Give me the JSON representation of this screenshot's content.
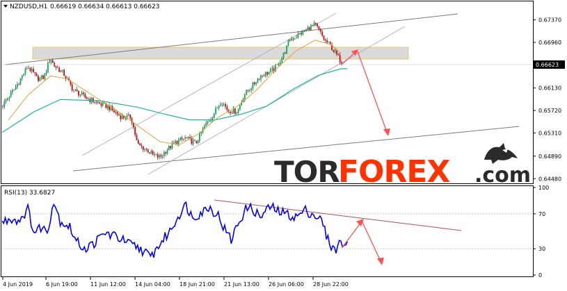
{
  "header": {
    "symbol": "NZDUSD,H1",
    "ohlc": "0.66619 0.66634 0.66613 0.66623"
  },
  "rsi_header": "RSI(13) 33.6827",
  "watermark": {
    "tor": "TOR",
    "forex": "FOREX",
    "com": ".com"
  },
  "colors": {
    "bull": "#00b050",
    "bear": "#e00000",
    "wick": "#000000",
    "ma_fast": "#e0a030",
    "ma_slow": "#20b0a0",
    "rsi": "#0000ff",
    "channel": "#aab4c0",
    "trend": "#7a7a7a",
    "zone": "#d9d9d9",
    "zone_border": "#f0c060",
    "arrow": "#ff5050",
    "rsi_trend": "#b05050"
  },
  "chart_data": [
    {
      "type": "candlestick",
      "title": "",
      "y_ticks": [
        "0.67370",
        "0.66960",
        "0.66623",
        "0.66130",
        "0.65720",
        "0.65310",
        "0.64890",
        "0.64480"
      ],
      "x_ticks": [
        "4 Jun 2019",
        "6 Jun 19:00",
        "11 Jun 12:00",
        "14 Jun 04:00",
        "18 Jun 21:00",
        "21 Jun 13:00",
        "26 Jun 06:00",
        "28 Jun 22:00"
      ],
      "ylim": [
        0.6442,
        0.6768
      ],
      "current_price": 0.66623,
      "path_points": [
        [
          0,
          0.658
        ],
        [
          8,
          0.6612
        ],
        [
          16,
          0.6652
        ],
        [
          22,
          0.663
        ],
        [
          26,
          0.6632
        ],
        [
          30,
          0.6668
        ],
        [
          32,
          0.6655
        ],
        [
          38,
          0.664
        ],
        [
          44,
          0.661
        ],
        [
          52,
          0.6595
        ],
        [
          60,
          0.6585
        ],
        [
          66,
          0.6578
        ],
        [
          74,
          0.656
        ],
        [
          80,
          0.656
        ],
        [
          84,
          0.651
        ],
        [
          90,
          0.65
        ],
        [
          94,
          0.649
        ],
        [
          98,
          0.6487
        ],
        [
          102,
          0.65
        ],
        [
          108,
          0.6515
        ],
        [
          114,
          0.6522
        ],
        [
          120,
          0.6512
        ],
        [
          126,
          0.6545
        ],
        [
          130,
          0.656
        ],
        [
          136,
          0.659
        ],
        [
          140,
          0.6572
        ],
        [
          146,
          0.657
        ],
        [
          150,
          0.66
        ],
        [
          156,
          0.662
        ],
        [
          160,
          0.6635
        ],
        [
          164,
          0.664
        ],
        [
          168,
          0.6645
        ],
        [
          172,
          0.666
        ],
        [
          176,
          0.6682
        ],
        [
          178,
          0.67
        ],
        [
          184,
          0.671
        ],
        [
          190,
          0.6722
        ],
        [
          194,
          0.6728
        ],
        [
          196,
          0.672
        ],
        [
          200,
          0.67
        ],
        [
          204,
          0.6688
        ],
        [
          210,
          0.6662
        ]
      ],
      "ma_fast": [
        [
          4,
          0.6555
        ],
        [
          16,
          0.66
        ],
        [
          30,
          0.6635
        ],
        [
          40,
          0.663
        ],
        [
          56,
          0.66
        ],
        [
          72,
          0.657
        ],
        [
          86,
          0.654
        ],
        [
          98,
          0.6515
        ],
        [
          110,
          0.651
        ],
        [
          122,
          0.653
        ],
        [
          134,
          0.656
        ],
        [
          146,
          0.658
        ],
        [
          158,
          0.661
        ],
        [
          170,
          0.6648
        ],
        [
          182,
          0.668
        ],
        [
          194,
          0.67
        ],
        [
          204,
          0.6692
        ],
        [
          210,
          0.6676
        ]
      ],
      "ma_slow": [
        [
          0,
          0.6532
        ],
        [
          20,
          0.657
        ],
        [
          36,
          0.6592
        ],
        [
          60,
          0.659
        ],
        [
          84,
          0.6578
        ],
        [
          100,
          0.6566
        ],
        [
          116,
          0.6555
        ],
        [
          132,
          0.6555
        ],
        [
          148,
          0.6565
        ],
        [
          164,
          0.658
        ],
        [
          180,
          0.661
        ],
        [
          196,
          0.6636
        ],
        [
          210,
          0.6648
        ],
        [
          214,
          0.6648
        ]
      ]
    },
    {
      "type": "line",
      "title": "",
      "y_ticks": [
        "100",
        "70",
        "30",
        "0"
      ],
      "ylim": [
        0,
        100
      ],
      "levels": [
        70,
        30
      ],
      "path_points": [
        [
          0,
          60
        ],
        [
          6,
          65
        ],
        [
          10,
          62
        ],
        [
          16,
          75
        ],
        [
          20,
          48
        ],
        [
          24,
          55
        ],
        [
          28,
          50
        ],
        [
          32,
          85
        ],
        [
          36,
          62
        ],
        [
          42,
          55
        ],
        [
          46,
          38
        ],
        [
          52,
          30
        ],
        [
          58,
          38
        ],
        [
          64,
          48
        ],
        [
          72,
          43
        ],
        [
          78,
          36
        ],
        [
          86,
          30
        ],
        [
          92,
          20
        ],
        [
          98,
          36
        ],
        [
          104,
          50
        ],
        [
          110,
          70
        ],
        [
          114,
          80
        ],
        [
          118,
          66
        ],
        [
          124,
          72
        ],
        [
          128,
          78
        ],
        [
          134,
          68
        ],
        [
          138,
          52
        ],
        [
          142,
          40
        ],
        [
          146,
          58
        ],
        [
          152,
          78
        ],
        [
          156,
          74
        ],
        [
          160,
          66
        ],
        [
          166,
          78
        ],
        [
          172,
          72
        ],
        [
          176,
          70
        ],
        [
          182,
          66
        ],
        [
          188,
          74
        ],
        [
          194,
          68
        ],
        [
          198,
          62
        ],
        [
          202,
          40
        ],
        [
          206,
          28
        ],
        [
          210,
          38
        ],
        [
          214,
          33
        ]
      ]
    }
  ]
}
